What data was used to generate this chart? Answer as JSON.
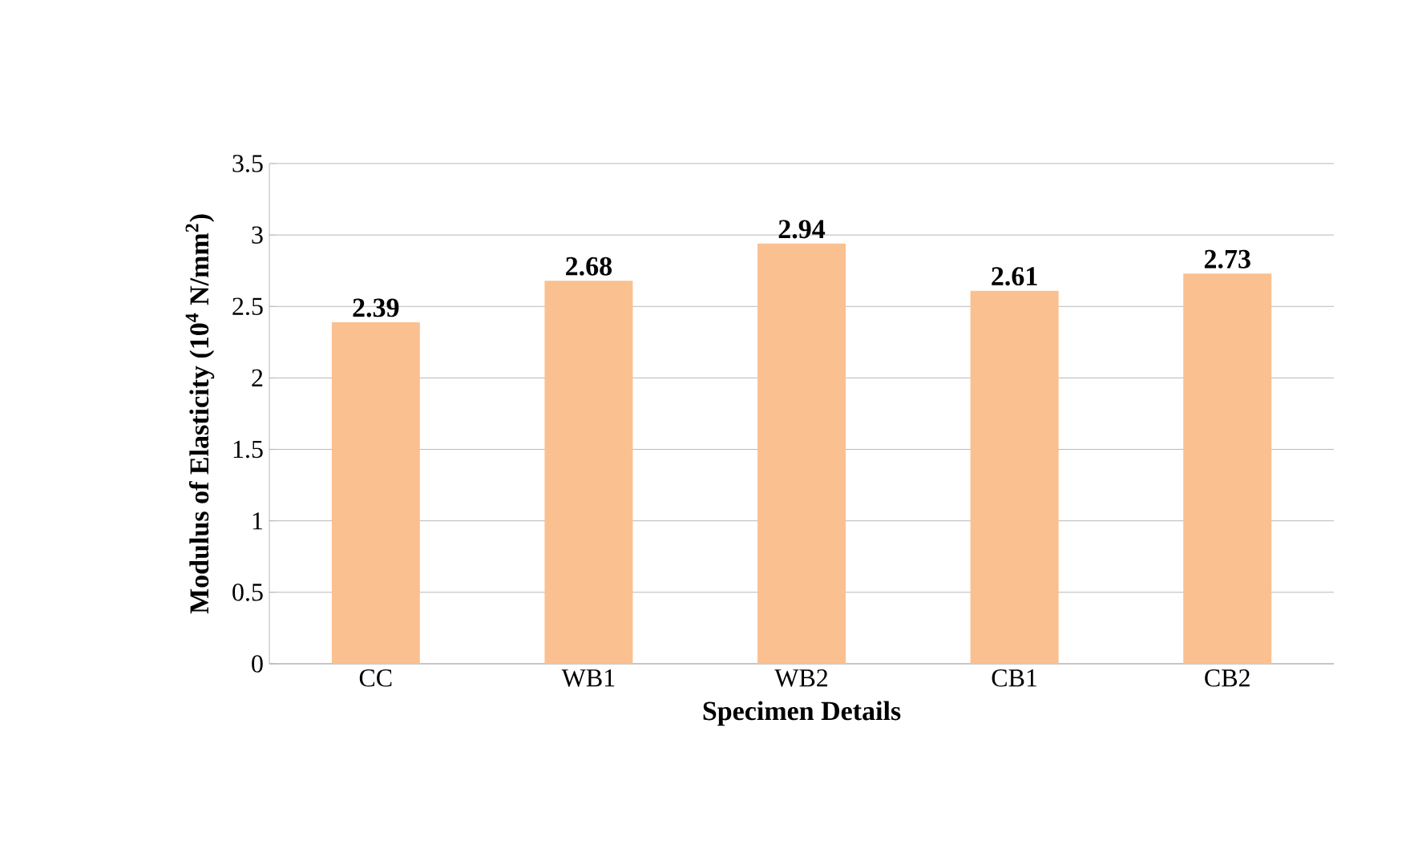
{
  "chart_data": {
    "type": "bar",
    "xlabel": "Specimen Details",
    "ylabel": "Modulus of Elasticity (10$^{4}$ N/mm$^{2}$)",
    "categories": [
      "CC",
      "WB1",
      "WB2",
      "CB1",
      "CB2"
    ],
    "values": [
      2.39,
      2.68,
      2.94,
      2.61,
      2.73
    ],
    "color": "#fac090",
    "data_labels": true,
    "grid": "y",
    "ylim": [
      0,
      3.5
    ],
    "yticks": [
      0,
      0.5,
      1,
      1.5,
      2,
      2.5,
      3,
      3.5
    ]
  }
}
